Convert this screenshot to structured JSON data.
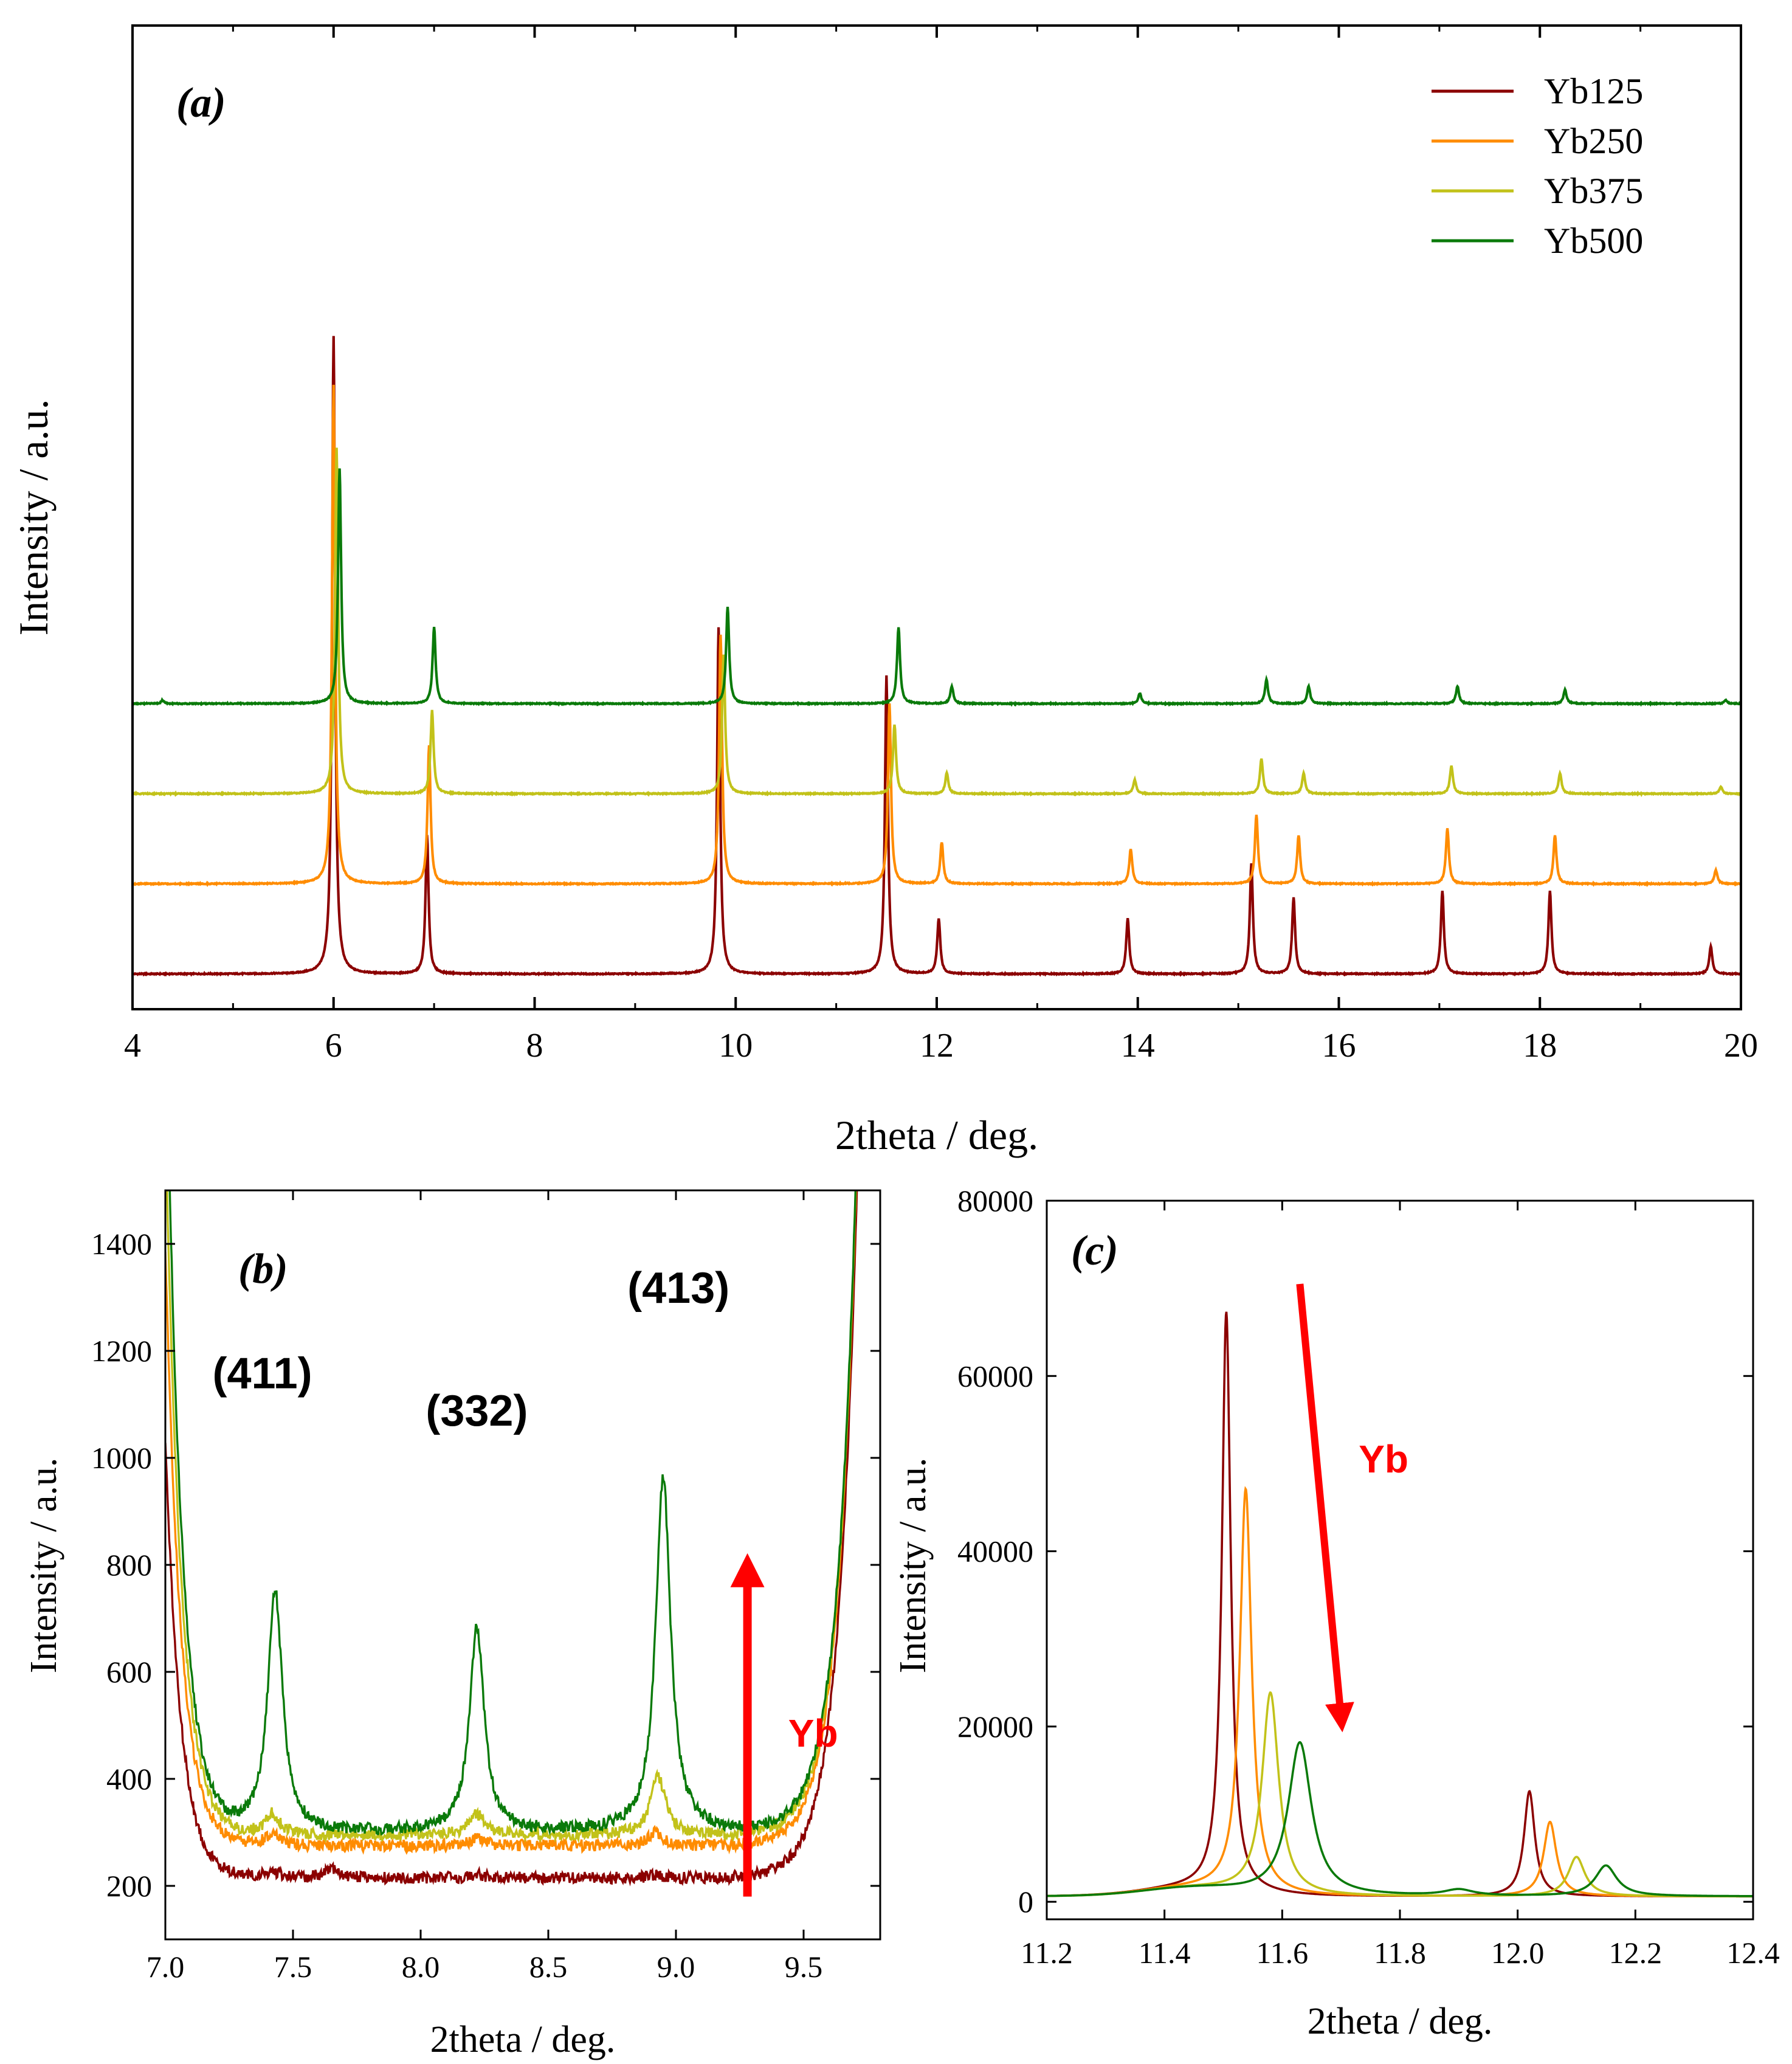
{
  "chart_data": [
    {
      "id": "a",
      "type": "line",
      "panel_label": "(a)",
      "xlabel": "2theta / deg.",
      "ylabel": "Intensity / a.u.",
      "xlim": [
        4,
        20
      ],
      "xticks": [
        4,
        6,
        8,
        10,
        12,
        14,
        16,
        18,
        20
      ],
      "legend_position": "top-right",
      "note": "Stacked (vertically offset) diffraction patterns; no y tick labels. Baselines are offsets in arbitrary units, peaks are relative heights in the same units.",
      "series": [
        {
          "name": "Yb125",
          "color": "#8B0000",
          "baseline": 0,
          "peaks": [
            [
              6.0,
              0.92
            ],
            [
              6.93,
              0.2
            ],
            [
              9.83,
              0.5
            ],
            [
              11.5,
              0.43
            ],
            [
              12.02,
              0.08
            ],
            [
              13.9,
              0.08
            ],
            [
              15.13,
              0.16
            ],
            [
              15.55,
              0.11
            ],
            [
              17.03,
              0.12
            ],
            [
              18.1,
              0.12
            ],
            [
              19.7,
              0.04
            ]
          ]
        },
        {
          "name": "Yb250",
          "color": "#FF8C00",
          "baseline": 0.13,
          "peaks": [
            [
              6.0,
              0.72
            ],
            [
              6.95,
              0.2
            ],
            [
              9.85,
              0.36
            ],
            [
              11.53,
              0.26
            ],
            [
              12.05,
              0.06
            ],
            [
              13.93,
              0.05
            ],
            [
              15.18,
              0.1
            ],
            [
              15.6,
              0.07
            ],
            [
              17.08,
              0.08
            ],
            [
              18.15,
              0.07
            ],
            [
              19.75,
              0.02
            ]
          ]
        },
        {
          "name": "Yb375",
          "color": "#C2C21A",
          "baseline": 0.26,
          "peaks": [
            [
              6.03,
              0.5
            ],
            [
              6.98,
              0.12
            ],
            [
              9.88,
              0.2
            ],
            [
              11.58,
              0.1
            ],
            [
              12.1,
              0.03
            ],
            [
              13.97,
              0.02
            ],
            [
              15.23,
              0.05
            ],
            [
              15.65,
              0.03
            ],
            [
              17.12,
              0.04
            ],
            [
              18.2,
              0.03
            ],
            [
              19.8,
              0.01
            ]
          ]
        },
        {
          "name": "Yb500",
          "color": "#0A7A0A",
          "baseline": 0.39,
          "peaks": [
            [
              4.3,
              0.005
            ],
            [
              6.06,
              0.34
            ],
            [
              7.0,
              0.11
            ],
            [
              9.92,
              0.14
            ],
            [
              11.62,
              0.11
            ],
            [
              12.15,
              0.025
            ],
            [
              14.02,
              0.015
            ],
            [
              15.28,
              0.035
            ],
            [
              15.7,
              0.025
            ],
            [
              17.18,
              0.025
            ],
            [
              18.25,
              0.02
            ],
            [
              19.85,
              0.005
            ]
          ]
        }
      ]
    },
    {
      "id": "b",
      "type": "line",
      "panel_label": "(b)",
      "xlabel": "2theta / deg.",
      "ylabel": "Intensity / a.u.",
      "xlim": [
        7.0,
        9.8
      ],
      "ylim": [
        100,
        1500
      ],
      "xticks": [
        7.0,
        7.5,
        8.0,
        8.5,
        9.0,
        9.5
      ],
      "xtick_labels": [
        "7.0",
        "7.5",
        "8.0",
        "8.5",
        "9.0",
        "9.5"
      ],
      "yticks": [
        200,
        400,
        600,
        800,
        1000,
        1200,
        1400
      ],
      "annotations": [
        {
          "text": "(411)",
          "x": 7.38,
          "y": 1130
        },
        {
          "text": "(332)",
          "x": 8.22,
          "y": 1060
        },
        {
          "text": "(413)",
          "x": 9.01,
          "y": 1290
        },
        {
          "text": "Yb",
          "x": 9.44,
          "y": 460
        }
      ],
      "arrow": {
        "x": 9.28,
        "y_from": 180,
        "y_to": 790,
        "direction": "up",
        "label": "Yb"
      },
      "series": [
        {
          "name": "Yb125",
          "color": "#8B0000",
          "baseline": 215,
          "peaks": [
            [
              7.42,
              10
            ],
            [
              7.65,
              15
            ],
            [
              8.22,
              5
            ],
            [
              8.92,
              5
            ]
          ]
        },
        {
          "name": "Yb250",
          "color": "#FF8C00",
          "baseline": 275,
          "peaks": [
            [
              7.42,
              20
            ],
            [
              8.22,
              15
            ],
            [
              8.92,
              25
            ]
          ]
        },
        {
          "name": "Yb375",
          "color": "#C2C21A",
          "baseline": 295,
          "peaks": [
            [
              7.42,
              40
            ],
            [
              8.22,
              40
            ],
            [
              8.93,
              110
            ]
          ]
        },
        {
          "name": "Yb500",
          "color": "#0A7A0A",
          "baseline": 300,
          "peaks": [
            [
              7.43,
              450
            ],
            [
              8.22,
              380
            ],
            [
              8.95,
              665
            ]
          ]
        }
      ]
    },
    {
      "id": "c",
      "type": "line",
      "panel_label": "(c)",
      "xlabel": "2theta / deg.",
      "ylabel": "Intensity / a.u.",
      "xlim": [
        11.2,
        12.4
      ],
      "ylim": [
        -2000,
        80000
      ],
      "xticks": [
        11.2,
        11.4,
        11.6,
        11.8,
        12.0,
        12.2,
        12.4
      ],
      "xtick_labels": [
        "11.2",
        "11.4",
        "11.6",
        "11.8",
        "12.0",
        "12.2",
        "12.4"
      ],
      "yticks": [
        0,
        20000,
        40000,
        60000,
        80000
      ],
      "annotations": [
        {
          "text": "Yb",
          "x": 11.73,
          "y": 49000
        }
      ],
      "arrow": {
        "x_from": 11.63,
        "y_from": 70500,
        "x_to": 11.7,
        "y_to": 21000,
        "direction": "down-right",
        "label": "Yb"
      },
      "series": [
        {
          "name": "Yb125",
          "color": "#8B0000",
          "baseline": 600,
          "peaks": [
            [
              11.505,
              66000,
              0.009
            ],
            [
              12.02,
              12000,
              0.011
            ]
          ]
        },
        {
          "name": "Yb250",
          "color": "#FF8C00",
          "baseline": 600,
          "peaks": [
            [
              11.538,
              46000,
              0.012
            ],
            [
              12.055,
              8500,
              0.013
            ]
          ]
        },
        {
          "name": "Yb375",
          "color": "#C2C21A",
          "baseline": 600,
          "peaks": [
            [
              11.58,
              23000,
              0.017
            ],
            [
              12.1,
              4500,
              0.017
            ]
          ]
        },
        {
          "name": "Yb500",
          "color": "#0A7A0A",
          "baseline": 600,
          "peaks": [
            [
              11.63,
              17500,
              0.024
            ],
            [
              11.9,
              700,
              0.03
            ],
            [
              12.15,
              3500,
              0.022
            ]
          ]
        }
      ]
    }
  ]
}
